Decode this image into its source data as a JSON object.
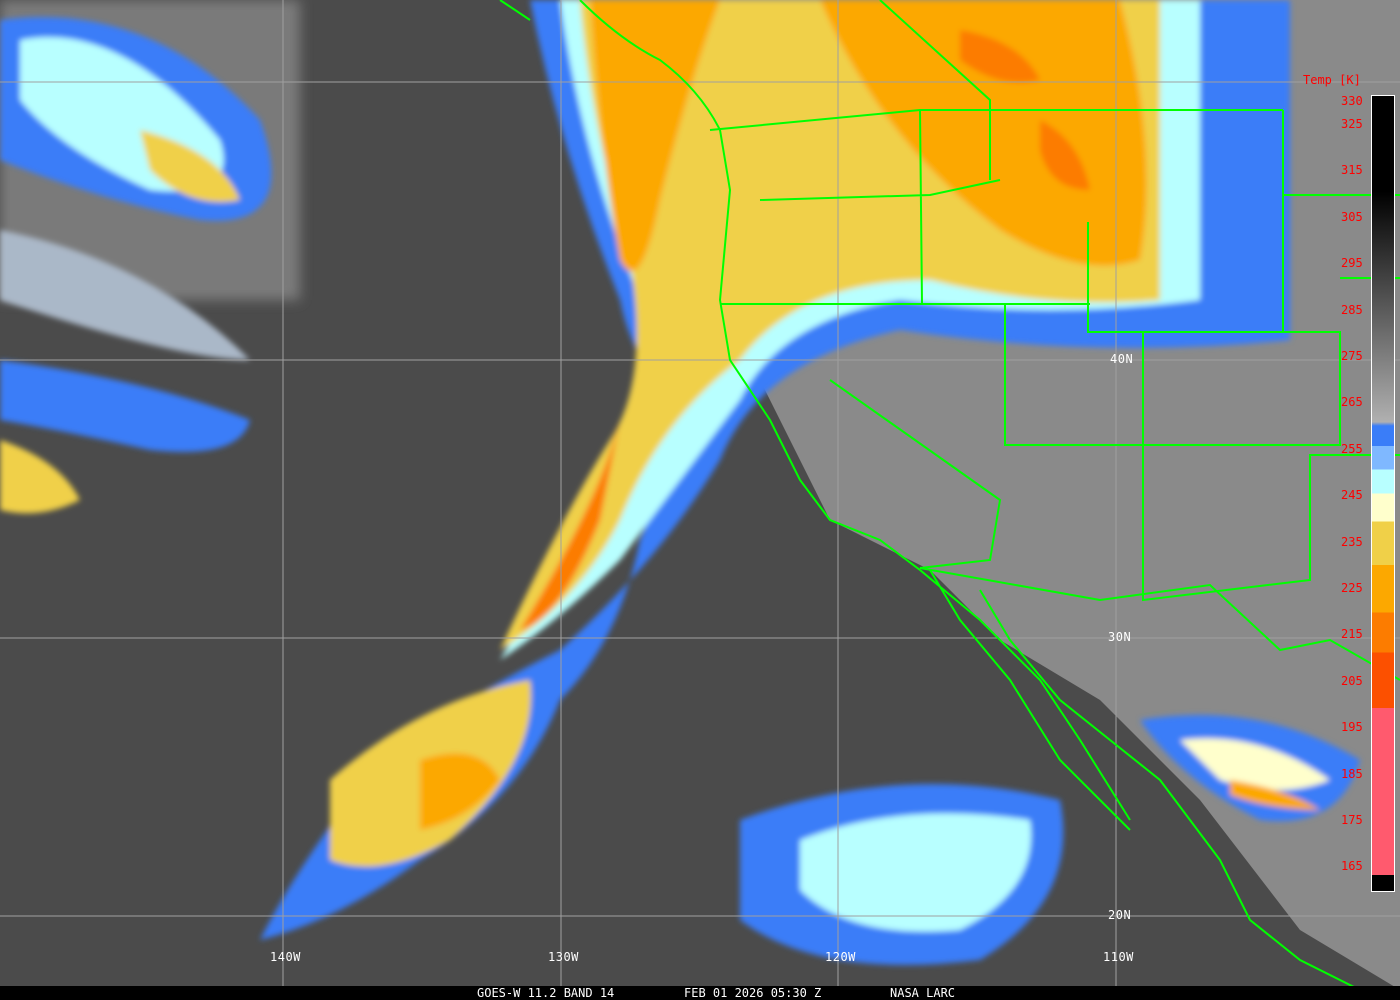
{
  "colorbar": {
    "title": "Temp [K]",
    "ticks": [
      "330",
      "325",
      "315",
      "305",
      "295",
      "285",
      "275",
      "265",
      "255",
      "245",
      "235",
      "225",
      "215",
      "205",
      "195",
      "185",
      "175",
      "165"
    ],
    "colors": {
      "warm": "#000000",
      "mid": "#808080",
      "blue": "#3a7df8",
      "light_blue": "#7fb8ff",
      "cyan": "#b8ffff",
      "pale_yellow": "#ffffcc",
      "yellow": "#f0d048",
      "orange": "#fca800",
      "dark_orange": "#fc7c00",
      "red_orange": "#fc5000",
      "pink": "#ff5a6e"
    }
  },
  "grid": {
    "longitudes": [
      "140W",
      "130W",
      "120W",
      "110W"
    ],
    "latitudes": [
      "40N",
      "30N",
      "20N"
    ]
  },
  "boundary_color": "#00ff00",
  "footer": {
    "satellite": "GOES-W 11.2 BAND 14",
    "datetime": "FEB 01 2026 05:30 Z",
    "source": "NASA LARC"
  }
}
